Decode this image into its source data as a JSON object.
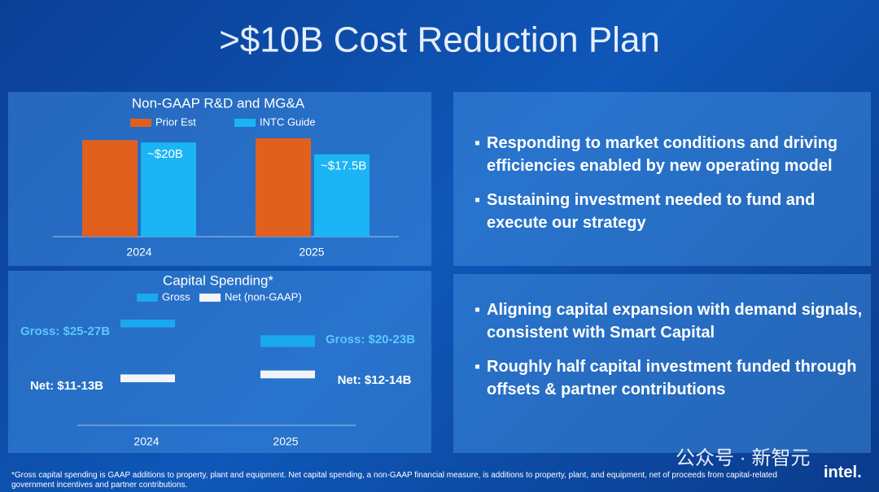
{
  "title": ">$10B Cost Reduction Plan",
  "chart_data": [
    {
      "type": "bar",
      "title": "Non-GAAP R&D and MG&A",
      "categories": [
        "2024",
        "2025"
      ],
      "series": [
        {
          "name": "Prior Est",
          "color": "#e2601e",
          "values": [
            20.5,
            20.9
          ]
        },
        {
          "name": "INTC Guide",
          "color": "#1bb4f5",
          "values": [
            20,
            17.5
          ],
          "value_labels": [
            "~$20B",
            "~$17.5B"
          ]
        }
      ]
    },
    {
      "type": "range",
      "title": "Capital Spending*",
      "categories": [
        "2024",
        "2025"
      ],
      "series": [
        {
          "name": "Gross",
          "color": "#1aa8ef",
          "label_color": "#5ac8ff",
          "low": [
            25,
            20
          ],
          "high": [
            27,
            23
          ],
          "value_labels": [
            "Gross: $25-27B",
            "Gross: $20-23B"
          ]
        },
        {
          "name": "Net (non-GAAP)",
          "color": "#f2f4f8",
          "label_color": "#ffffff",
          "low": [
            11,
            12
          ],
          "high": [
            13,
            14
          ],
          "value_labels": [
            "Net: $11-13B",
            "Net: $12-14B"
          ]
        }
      ]
    }
  ],
  "bullets_top": [
    "Responding to market conditions and driving efficiencies enabled by new operating model",
    "Sustaining investment needed to fund and execute our strategy"
  ],
  "bullets_bottom": [
    "Aligning capital expansion with demand signals, consistent with Smart Capital",
    "Roughly half capital investment funded through offsets & partner contributions"
  ],
  "footnote": "*Gross capital spending is GAAP additions to property, plant and equipment. Net capital spending, a non-GAAP financial measure, is additions to property, plant, and equipment, net of proceeds from capital-related government incentives and partner contributions.",
  "watermark": "公众号 · 新智元",
  "logo": "intel."
}
